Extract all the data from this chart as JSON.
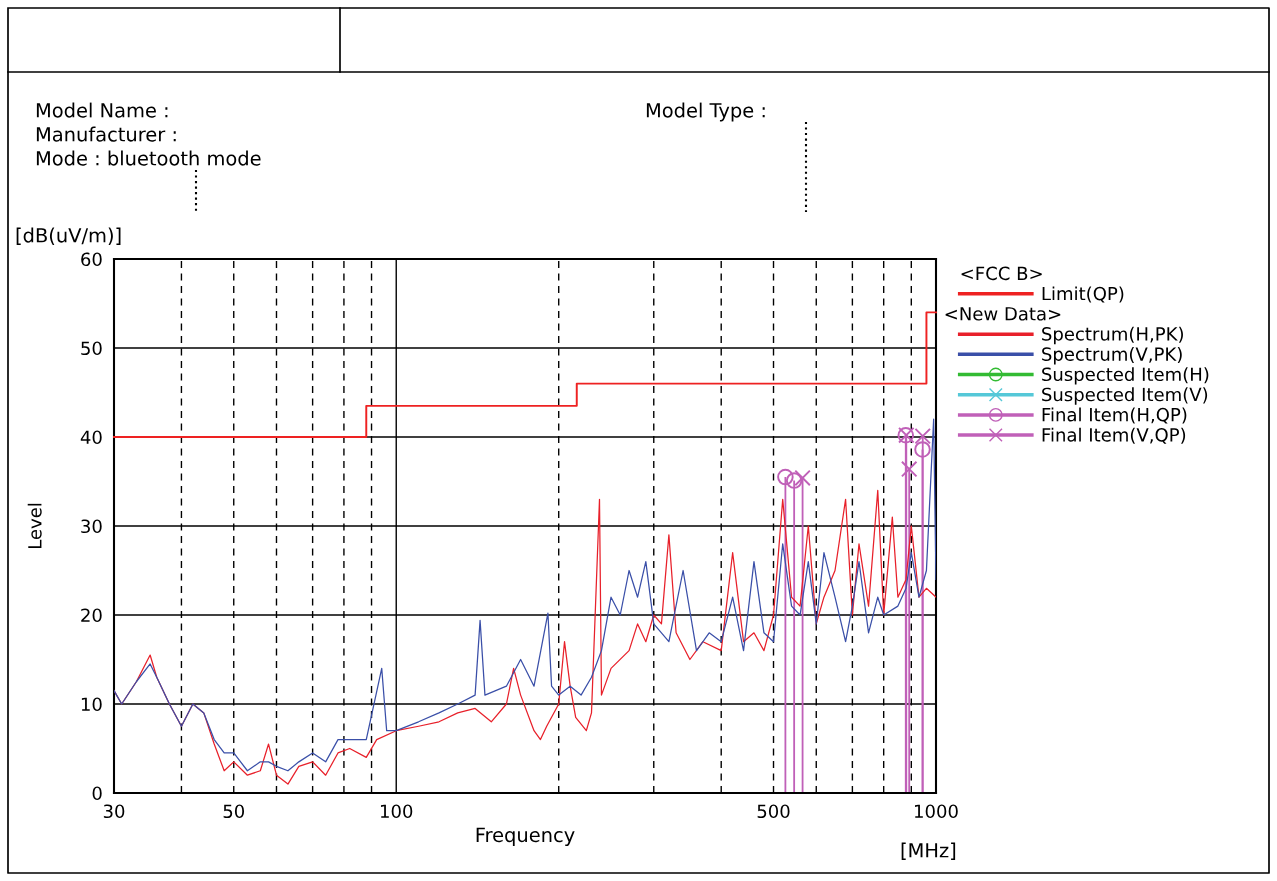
{
  "chart_data": {
    "type": "line",
    "annotations": [
      "Model Name :",
      "Manufacturer :",
      "Mode : bluetooth mode",
      "Model Type :",
      "<New Data>",
      "[dB(uV/m)]",
      "[MHz]"
    ],
    "legend_title": "<FCC B>",
    "xlabel": "Frequency",
    "ylabel": "Level",
    "log": "x",
    "xlim": [
      30,
      1000
    ],
    "ylim": [
      0,
      60
    ],
    "xticks": [
      30,
      {
        "value": 40,
        "label": null
      },
      50,
      {
        "value": 60,
        "label": null
      },
      {
        "value": 70,
        "label": null
      },
      {
        "value": 80,
        "label": null
      },
      {
        "value": 90,
        "label": null
      },
      100,
      {
        "value": 200,
        "label": null
      },
      {
        "value": 300,
        "label": null
      },
      {
        "value": 400,
        "label": null
      },
      500,
      {
        "value": 600,
        "label": null
      },
      {
        "value": 700,
        "label": null
      },
      {
        "value": 800,
        "label": null
      },
      {
        "value": 900,
        "label": null
      },
      1000
    ],
    "yticks": [
      0,
      10,
      20,
      30,
      40,
      50,
      60
    ],
    "grid": true,
    "legend": "right",
    "series": [
      {
        "name": "Limit(QP)",
        "type": "step",
        "color": "#ee2222",
        "marker": "none",
        "x": [
          30,
          88,
          216,
          960,
          1000
        ],
        "values": [
          40,
          43.5,
          46,
          54,
          54
        ]
      },
      {
        "name": "Spectrum(H,PK)",
        "color": "#e8202a",
        "marker": "none",
        "x": [
          30,
          31,
          33,
          35,
          36,
          38,
          40,
          42,
          44,
          46,
          48,
          50,
          53,
          56,
          58,
          60,
          63,
          66,
          70,
          74,
          78,
          82,
          88,
          92,
          100,
          110,
          120,
          130,
          140,
          150,
          160,
          165,
          170,
          180,
          185,
          190,
          200,
          205,
          210,
          215,
          225,
          230,
          238,
          240,
          250,
          270,
          280,
          290,
          300,
          310,
          320,
          330,
          350,
          370,
          400,
          420,
          440,
          460,
          480,
          500,
          520,
          540,
          560,
          580,
          600,
          620,
          650,
          680,
          700,
          720,
          750,
          780,
          800,
          830,
          850,
          880,
          900,
          930,
          960,
          1000
        ],
        "values": [
          11.5,
          10,
          12.5,
          15.5,
          13,
          10,
          7.5,
          10,
          9,
          5.5,
          2.5,
          3.5,
          2,
          2.5,
          5.5,
          2,
          1,
          3,
          3.5,
          2,
          4.5,
          5,
          4,
          6,
          7,
          7.5,
          8,
          9,
          9.5,
          8,
          10,
          14,
          11,
          7,
          6,
          7.5,
          10,
          17,
          12,
          8.5,
          7,
          9,
          33,
          11,
          14,
          16,
          19,
          17,
          20,
          19,
          29,
          18,
          15,
          17,
          16,
          27,
          17,
          18,
          16,
          20,
          33,
          22,
          21,
          30,
          19,
          22,
          25,
          33,
          20,
          28,
          21,
          34,
          20,
          31,
          22,
          24,
          30,
          22,
          23,
          22
        ]
      },
      {
        "name": "Spectrum(V,PK)",
        "color": "#3a4fa8",
        "marker": "none",
        "x": [
          30,
          31,
          33,
          35,
          36,
          38,
          40,
          42,
          44,
          46,
          48,
          50,
          53,
          56,
          58,
          60,
          63,
          66,
          70,
          74,
          78,
          82,
          88,
          94,
          96,
          100,
          110,
          120,
          130,
          140,
          143,
          146,
          160,
          170,
          180,
          191,
          194,
          200,
          210,
          220,
          230,
          240,
          250,
          260,
          270,
          280,
          290,
          300,
          320,
          340,
          360,
          380,
          400,
          420,
          440,
          460,
          480,
          500,
          520,
          540,
          560,
          580,
          600,
          620,
          650,
          680,
          700,
          720,
          750,
          780,
          800,
          850,
          880,
          900,
          930,
          960,
          990,
          1000
        ],
        "values": [
          11.5,
          10,
          12.5,
          14.5,
          13,
          10,
          7.5,
          10,
          9,
          6,
          4.5,
          4.5,
          2.5,
          3.5,
          3.5,
          3,
          2.5,
          3.5,
          4.5,
          3.5,
          6,
          6,
          6,
          14,
          7,
          7,
          8,
          9,
          10,
          11,
          19.4,
          11,
          12,
          15,
          12,
          20.2,
          12,
          11,
          12,
          11,
          13,
          16,
          22,
          20,
          25,
          22,
          26,
          19,
          17,
          25,
          16,
          18,
          17,
          22,
          16,
          26,
          18,
          17,
          28,
          21,
          20,
          26,
          19,
          27,
          22,
          17,
          21,
          26,
          18,
          22,
          20,
          21,
          23,
          27,
          22,
          25,
          42,
          24
        ]
      },
      {
        "name": "Suspected Item(H)",
        "type": "lollipop",
        "color": "#33bb33",
        "marker": "circle"
      },
      {
        "name": "Suspected Item(V)",
        "type": "lollipop",
        "color": "#55c8d8",
        "marker": "cross"
      },
      {
        "name": "Final Item(H,QP)",
        "type": "lollipop",
        "color": "#c060b8",
        "marker": "circle",
        "x": [
          526,
          546,
          879,
          944
        ],
        "values": [
          35.5,
          35.1,
          40.2,
          38.6
        ]
      },
      {
        "name": "Final Item(V,QP)",
        "type": "lollipop",
        "color": "#c060b8",
        "marker": "cross",
        "x": [
          566,
          881,
          892,
          945
        ],
        "values": [
          35.4,
          40.2,
          36.4,
          40.1
        ]
      }
    ]
  }
}
